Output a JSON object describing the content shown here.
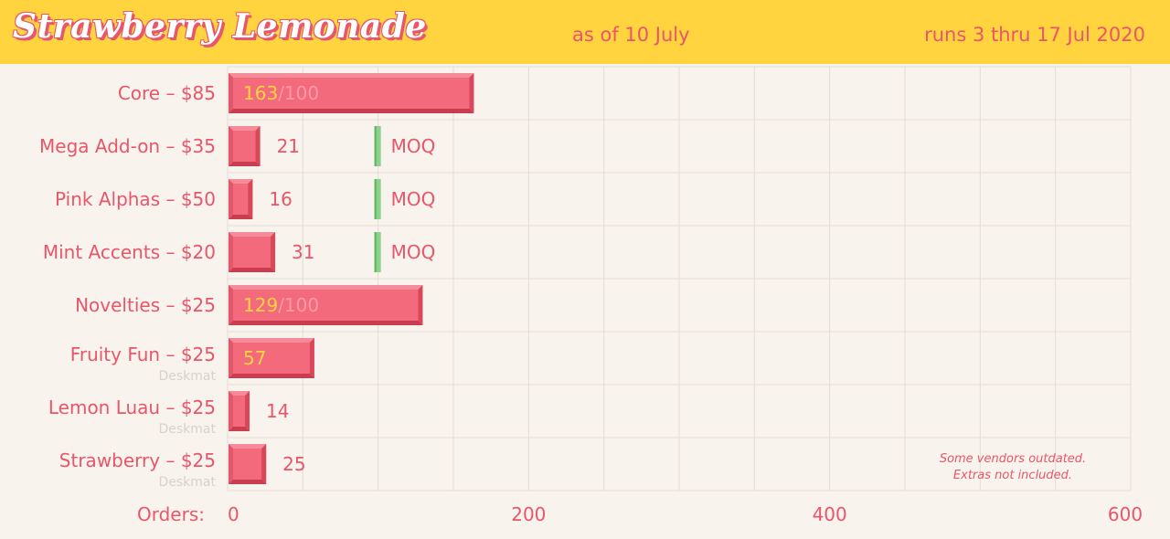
{
  "header": {
    "title": "Strawberry Lemonade",
    "as_of": "as of 10 July",
    "runs": "runs 3 thru 17 Jul 2020"
  },
  "note": [
    "Some vendors outdated.",
    "Extras not included."
  ],
  "colors": {
    "header_bg": "#ffd43f",
    "background": "#f8f3ec",
    "accent": "#e8566b",
    "bar": "#f26a7c",
    "bar_value_inside": "#ffd43f",
    "moq_marker": "#8bd28a",
    "sublabel": "#d8d2cc"
  },
  "chart_data": {
    "type": "bar",
    "orientation": "horizontal",
    "xlabel": "Orders:",
    "xlim": [
      0,
      600
    ],
    "xticks": [
      0,
      200,
      400,
      600
    ],
    "grid": true,
    "moq_label": "MOQ",
    "moq_value": 100,
    "categories": [
      {
        "label": "Core – $85",
        "sublabel": "",
        "value": 163,
        "target": "/100",
        "show_moq": false
      },
      {
        "label": "Mega Add-on – $35",
        "sublabel": "",
        "value": 21,
        "target": "",
        "show_moq": true
      },
      {
        "label": "Pink Alphas – $50",
        "sublabel": "",
        "value": 16,
        "target": "",
        "show_moq": true
      },
      {
        "label": "Mint Accents – $20",
        "sublabel": "",
        "value": 31,
        "target": "",
        "show_moq": true
      },
      {
        "label": "Novelties – $25",
        "sublabel": "",
        "value": 129,
        "target": "/100",
        "show_moq": false
      },
      {
        "label": "Fruity Fun – $25",
        "sublabel": "Deskmat",
        "value": 57,
        "target": "",
        "show_moq": false
      },
      {
        "label": "Lemon Luau – $25",
        "sublabel": "Deskmat",
        "value": 14,
        "target": "",
        "show_moq": false
      },
      {
        "label": "Strawberry – $25",
        "sublabel": "Deskmat",
        "value": 25,
        "target": "",
        "show_moq": false
      }
    ]
  }
}
